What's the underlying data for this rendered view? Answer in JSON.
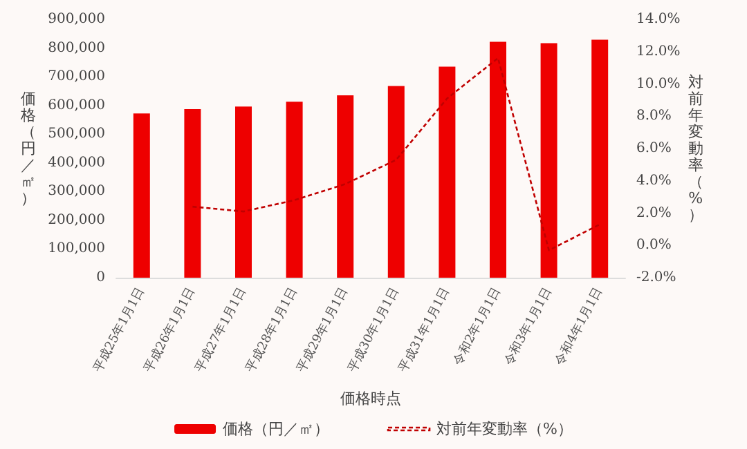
{
  "chart_data": {
    "type": "bar",
    "xlabel": "価格時点",
    "ylabel": "価格（円／㎡）",
    "y2label": "対前年変動率（%）",
    "categories": [
      "平成25年1月1日",
      "平成26年1月1日",
      "平成27年1月1日",
      "平成28年1月1日",
      "平成29年1月1日",
      "平成30年1月1日",
      "平成31年1月1日",
      "令和2年1月1日",
      "令和3年1月1日",
      "令和4年1月1日"
    ],
    "series": [
      {
        "name": "価格（円／㎡）",
        "color": "#ee0000",
        "values": [
          572000,
          587000,
          596000,
          613000,
          635000,
          668000,
          735000,
          822000,
          817000,
          829000
        ]
      },
      {
        "name": "対前年変動率（%）",
        "type": "line",
        "axis": "y2",
        "color": "#c00000",
        "line_style": "dashed",
        "marker": "none",
        "values": [
          null,
          2.4,
          2.1,
          2.8,
          3.8,
          5.3,
          9.1,
          11.6,
          -0.3,
          1.3
        ]
      }
    ],
    "ylim": [
      0,
      900000
    ],
    "yticks": [
      0,
      {
        "value": 100000,
        "label": "100,000"
      },
      {
        "value": 200000,
        "label": "200,000"
      },
      {
        "value": 300000,
        "label": "300,000"
      },
      {
        "value": 400000,
        "label": "400,000"
      },
      {
        "value": 500000,
        "label": "500,000"
      },
      {
        "value": 600000,
        "label": "600,000"
      },
      {
        "value": 700000,
        "label": "700,000"
      },
      {
        "value": 800000,
        "label": "800,000"
      },
      {
        "value": 900000,
        "label": "900,000"
      }
    ],
    "y2lim": [
      -2,
      14
    ],
    "y2ticks": [
      {
        "value": -2,
        "label": "-2.0%"
      },
      {
        "value": 0,
        "label": "0.0%"
      },
      {
        "value": 2,
        "label": "2.0%"
      },
      {
        "value": 4,
        "label": "4.0%"
      },
      {
        "value": 6,
        "label": "6.0%"
      },
      {
        "value": 8,
        "label": "8.0%"
      },
      {
        "value": 10,
        "label": "10.0%"
      },
      {
        "value": 12,
        "label": "12.0%"
      },
      {
        "value": 14,
        "label": "14.0%"
      }
    ],
    "grid": false,
    "legend": "bottom"
  }
}
